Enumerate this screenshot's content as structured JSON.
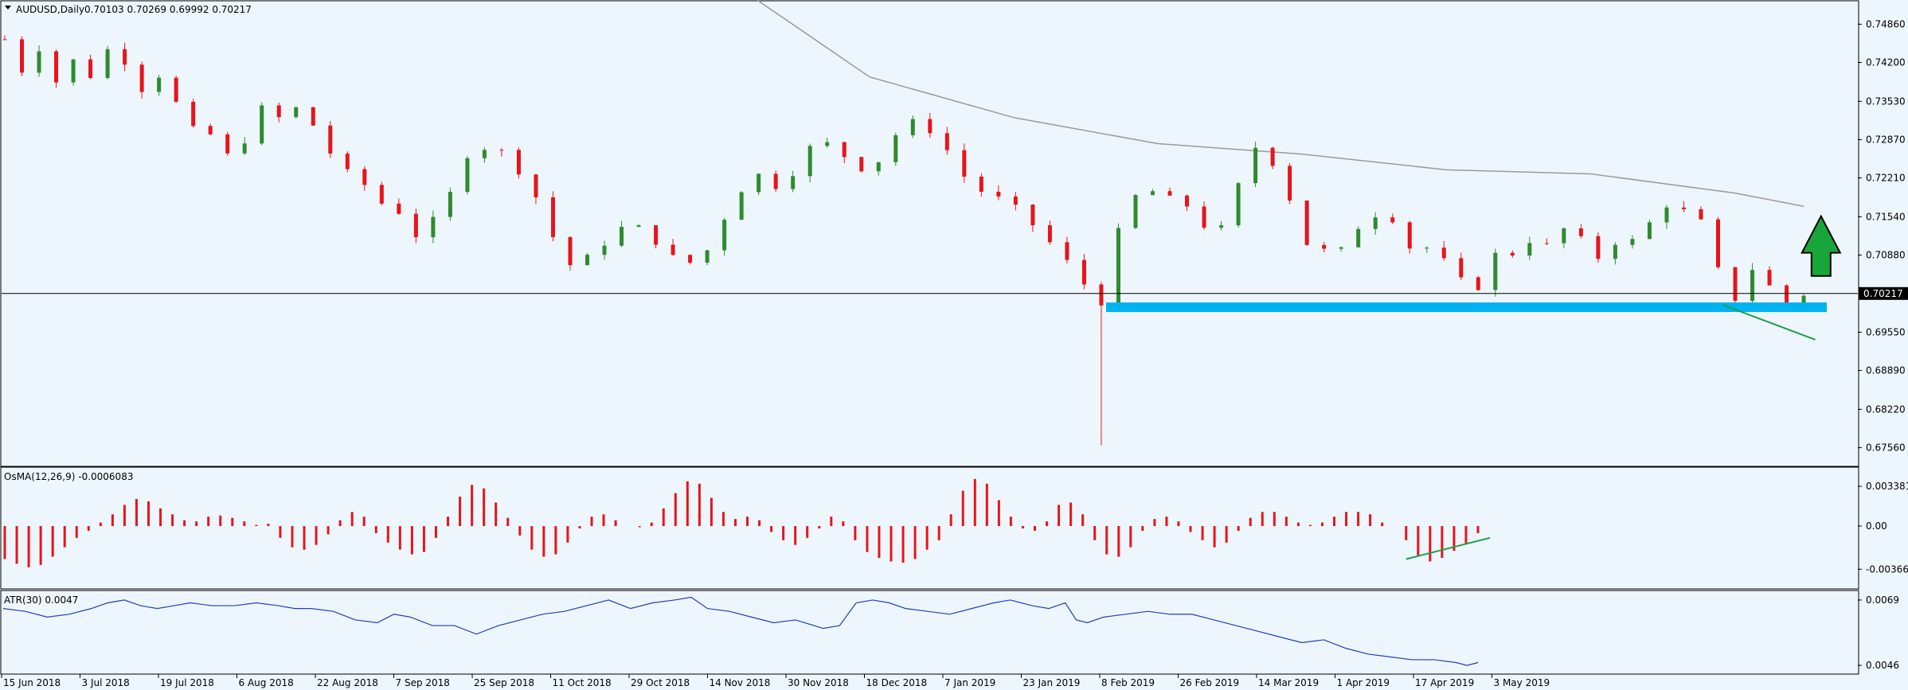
{
  "window": {
    "symbol_label": "AUDUSD,Daily",
    "ohlc_label": "0.70103 0.70269 0.69992 0.70217",
    "current_price_label": "0.70217"
  },
  "colors": {
    "background": "#eef6fd",
    "bull": "#2e8b2e",
    "bear": "#e8141a",
    "ma": "#9a9a9a",
    "support": "#00b2f0",
    "trendline": "#1aa14a",
    "arrow_fill": "#18a53a",
    "atr_line": "#1f3fbf",
    "hist": "#e8141a"
  },
  "chart_data": [
    {
      "type": "candlestick",
      "name": "price",
      "ylim": [
        0.6725,
        0.7525
      ],
      "y_ticks": [
        "0.74860",
        "0.74200",
        "0.73530",
        "0.72870",
        "0.72210",
        "0.71540",
        "0.70880",
        "0.70217",
        "0.69550",
        "0.68890",
        "0.68220",
        "0.67560"
      ],
      "x_labels": [
        "15 Jun 2018",
        "3 Jul 2018",
        "19 Jul 2018",
        "6 Aug 2018",
        "22 Aug 2018",
        "7 Sep 2018",
        "25 Sep 2018",
        "11 Oct 2018",
        "29 Oct 2018",
        "14 Nov 2018",
        "30 Nov 2018",
        "18 Dec 2018",
        "7 Jan 2019",
        "23 Jan 2019",
        "8 Feb 2019",
        "26 Feb 2019",
        "14 Mar 2019",
        "1 Apr 2019",
        "17 Apr 2019",
        "3 May 2019"
      ],
      "current_price": 0.70217,
      "support_level": 0.6998,
      "close_path": [
        [
          0,
          0.746
        ],
        [
          6,
          0.7405
        ],
        [
          12,
          0.7445
        ],
        [
          18,
          0.7385
        ],
        [
          24,
          0.7425
        ],
        [
          30,
          0.7395
        ],
        [
          36,
          0.7445
        ],
        [
          42,
          0.742
        ],
        [
          48,
          0.737
        ],
        [
          54,
          0.74
        ],
        [
          60,
          0.7345
        ],
        [
          66,
          0.73
        ],
        [
          72,
          0.7295
        ],
        [
          78,
          0.7255
        ],
        [
          84,
          0.729
        ],
        [
          90,
          0.735
        ],
        [
          96,
          0.732
        ],
        [
          102,
          0.7345
        ],
        [
          108,
          0.7305
        ],
        [
          114,
          0.7255
        ],
        [
          120,
          0.7225
        ],
        [
          126,
          0.7205
        ],
        [
          132,
          0.717
        ],
        [
          138,
          0.716
        ],
        [
          144,
          0.711
        ],
        [
          150,
          0.716
        ],
        [
          156,
          0.7205
        ],
        [
          162,
          0.728
        ],
        [
          168,
          0.727
        ],
        [
          174,
          0.7265
        ],
        [
          180,
          0.722
        ],
        [
          186,
          0.7175
        ],
        [
          192,
          0.7095
        ],
        [
          198,
          0.706
        ],
        [
          204,
          0.7095
        ],
        [
          210,
          0.7115
        ],
        [
          216,
          0.7145
        ],
        [
          222,
          0.713
        ],
        [
          228,
          0.71
        ],
        [
          234,
          0.7075
        ],
        [
          240,
          0.7075
        ],
        [
          246,
          0.711
        ],
        [
          252,
          0.718
        ],
        [
          258,
          0.7215
        ],
        [
          264,
          0.7235
        ],
        [
          270,
          0.7185
        ],
        [
          276,
          0.7265
        ],
        [
          282,
          0.728
        ],
        [
          288,
          0.728
        ],
        [
          294,
          0.724
        ],
        [
          300,
          0.7235
        ],
        [
          306,
          0.7265
        ],
        [
          312,
          0.7325
        ],
        [
          318,
          0.731
        ],
        [
          324,
          0.7295
        ],
        [
          330,
          0.724
        ],
        [
          336,
          0.7205
        ],
        [
          342,
          0.719
        ],
        [
          348,
          0.718
        ],
        [
          354,
          0.7155
        ],
        [
          360,
          0.712
        ],
        [
          366,
          0.7095
        ],
        [
          372,
          0.705
        ],
        [
          378,
          0.702
        ],
        [
          382,
          0.6997
        ],
        [
          386,
          0.7125
        ],
        [
          390,
          0.718
        ],
        [
          396,
          0.7205
        ],
        [
          402,
          0.7185
        ],
        [
          408,
          0.7185
        ],
        [
          414,
          0.715
        ],
        [
          420,
          0.7115
        ],
        [
          426,
          0.7175
        ],
        [
          432,
          0.728
        ],
        [
          438,
          0.726
        ],
        [
          444,
          0.7215
        ],
        [
          450,
          0.711
        ],
        [
          456,
          0.71
        ],
        [
          462,
          0.7085
        ],
        [
          468,
          0.713
        ],
        [
          474,
          0.7155
        ],
        [
          480,
          0.7165
        ],
        [
          486,
          0.71
        ],
        [
          492,
          0.7105
        ],
        [
          498,
          0.7085
        ],
        [
          504,
          0.705
        ],
        [
          510,
          0.702
        ],
        [
          516,
          0.709
        ],
        [
          522,
          0.7085
        ],
        [
          528,
          0.7115
        ],
        [
          534,
          0.71
        ],
        [
          540,
          0.7135
        ],
        [
          546,
          0.712
        ],
        [
          552,
          0.708
        ],
        [
          558,
          0.711
        ],
        [
          564,
          0.711
        ],
        [
          570,
          0.714
        ],
        [
          576,
          0.7175
        ],
        [
          582,
          0.7165
        ],
        [
          588,
          0.715
        ],
        [
          594,
          0.7065
        ],
        [
          600,
          0.701
        ],
        [
          606,
          0.7065
        ],
        [
          612,
          0.7035
        ],
        [
          618,
          0.7
        ],
        [
          624,
          0.702
        ]
      ],
      "candles_count": 105,
      "ma_path": [
        [
          250,
          0.7565
        ],
        [
          300,
          0.7395
        ],
        [
          350,
          0.7325
        ],
        [
          400,
          0.728
        ],
        [
          450,
          0.7262
        ],
        [
          500,
          0.7235
        ],
        [
          550,
          0.7228
        ],
        [
          600,
          0.7195
        ],
        [
          624,
          0.7172
        ]
      ],
      "annotations": [
        {
          "kind": "horizontal-support",
          "level": 0.6998,
          "from_index": 382,
          "to_index": 632
        },
        {
          "kind": "trendline",
          "from": [
            596,
            0.7002
          ],
          "to": [
            628,
            0.6942
          ]
        },
        {
          "kind": "up-arrow",
          "at_index": 630,
          "from": 0.7052,
          "to": 0.7155
        }
      ]
    },
    {
      "type": "bar",
      "name": "osma",
      "label": "OsMA(12,26,9) -0.0006083",
      "ylim": [
        -0.0052,
        0.0048
      ],
      "y_ticks": [
        "0.0033816",
        "0.00",
        "-0.0036634"
      ],
      "values": [
        -0.0028,
        -0.0032,
        -0.0035,
        -0.0033,
        -0.0026,
        -0.0018,
        -0.001,
        -0.0004,
        0.0003,
        0.001,
        0.0018,
        0.0023,
        0.0021,
        0.0015,
        0.001,
        0.0005,
        0.0004,
        0.0008,
        0.0009,
        0.0007,
        0.0004,
        0.0001,
        0.0002,
        -0.001,
        -0.0018,
        -0.002,
        -0.0016,
        -0.0007,
        0.0005,
        0.0012,
        0.0008,
        -0.0006,
        -0.0014,
        -0.002,
        -0.0024,
        -0.0022,
        -0.001,
        0.0008,
        0.0025,
        0.0035,
        0.0032,
        0.002,
        0.0007,
        -0.0008,
        -0.002,
        -0.0026,
        -0.0024,
        -0.0014,
        -0.0002,
        0.0008,
        0.001,
        0.0005,
        0.0,
        -0.0001,
        0.0003,
        0.0015,
        0.0028,
        0.0038,
        0.0036,
        0.0024,
        0.0012,
        0.0006,
        0.0008,
        0.0005,
        -0.0005,
        -0.0012,
        -0.0016,
        -0.001,
        -0.0002,
        0.0008,
        0.0004,
        -0.0012,
        -0.0022,
        -0.0027,
        -0.003,
        -0.0031,
        -0.0028,
        -0.002,
        -0.0012,
        0.001,
        0.003,
        0.004,
        0.0036,
        0.0022,
        0.0008,
        -0.0002,
        -0.0004,
        0.0004,
        0.0018,
        0.002,
        0.001,
        -0.0012,
        -0.0024,
        -0.0026,
        -0.0018,
        -0.0004,
        0.0006,
        0.0008,
        0.0004,
        -0.0005,
        -0.0012,
        -0.0018,
        -0.0014,
        -0.0004,
        0.0007,
        0.0012,
        0.0012,
        0.0008,
        0.0003,
        0.0001,
        0.0003,
        0.0008,
        0.0012,
        0.0012,
        0.001,
        0.0003,
        0.0,
        -0.0012,
        -0.0025,
        -0.003,
        -0.0027,
        -0.0021,
        -0.0015,
        -0.0006
      ],
      "trendline": {
        "from": [
          117,
          -0.0028
        ],
        "to": [
          124,
          -0.001
        ]
      }
    },
    {
      "type": "line",
      "name": "atr",
      "label": "ATR(30) 0.0047",
      "ylim": [
        0.00435,
        0.00715
      ],
      "y_ticks": [
        "0.0069",
        "0.0046"
      ],
      "points": [
        [
          0,
          0.0066
        ],
        [
          20,
          0.0065
        ],
        [
          40,
          0.0063
        ],
        [
          60,
          0.0064
        ],
        [
          80,
          0.0066
        ],
        [
          95,
          0.0068
        ],
        [
          110,
          0.0069
        ],
        [
          125,
          0.0067
        ],
        [
          140,
          0.0066
        ],
        [
          155,
          0.0067
        ],
        [
          170,
          0.0068
        ],
        [
          190,
          0.0067
        ],
        [
          210,
          0.0067
        ],
        [
          230,
          0.0068
        ],
        [
          250,
          0.0067
        ],
        [
          265,
          0.0066
        ],
        [
          280,
          0.0066
        ],
        [
          300,
          0.0065
        ],
        [
          320,
          0.0062
        ],
        [
          340,
          0.0061
        ],
        [
          355,
          0.0064
        ],
        [
          370,
          0.0063
        ],
        [
          390,
          0.006
        ],
        [
          410,
          0.006
        ],
        [
          430,
          0.0057
        ],
        [
          450,
          0.006
        ],
        [
          470,
          0.0062
        ],
        [
          490,
          0.0064
        ],
        [
          510,
          0.0065
        ],
        [
          530,
          0.0067
        ],
        [
          550,
          0.0069
        ],
        [
          570,
          0.0066
        ],
        [
          590,
          0.0068
        ],
        [
          610,
          0.0069
        ],
        [
          625,
          0.007
        ],
        [
          640,
          0.0066
        ],
        [
          660,
          0.0065
        ],
        [
          680,
          0.0063
        ],
        [
          700,
          0.0061
        ],
        [
          720,
          0.0062
        ],
        [
          745,
          0.0059
        ],
        [
          760,
          0.006
        ],
        [
          775,
          0.0068
        ],
        [
          790,
          0.0069
        ],
        [
          805,
          0.0068
        ],
        [
          820,
          0.0066
        ],
        [
          840,
          0.0065
        ],
        [
          860,
          0.0064
        ],
        [
          880,
          0.0066
        ],
        [
          900,
          0.0068
        ],
        [
          915,
          0.0069
        ],
        [
          935,
          0.0067
        ],
        [
          950,
          0.0066
        ],
        [
          965,
          0.0068
        ],
        [
          975,
          0.0062
        ],
        [
          985,
          0.0061
        ],
        [
          1000,
          0.0063
        ],
        [
          1020,
          0.0064
        ],
        [
          1040,
          0.0065
        ],
        [
          1060,
          0.0064
        ],
        [
          1080,
          0.0064
        ],
        [
          1100,
          0.0062
        ],
        [
          1120,
          0.006
        ],
        [
          1140,
          0.0058
        ],
        [
          1160,
          0.0056
        ],
        [
          1180,
          0.0054
        ],
        [
          1200,
          0.0055
        ],
        [
          1220,
          0.0052
        ],
        [
          1240,
          0.005
        ],
        [
          1260,
          0.0049
        ],
        [
          1280,
          0.0048
        ],
        [
          1300,
          0.0048
        ],
        [
          1320,
          0.0047
        ],
        [
          1330,
          0.0046
        ],
        [
          1340,
          0.0047
        ]
      ]
    }
  ]
}
